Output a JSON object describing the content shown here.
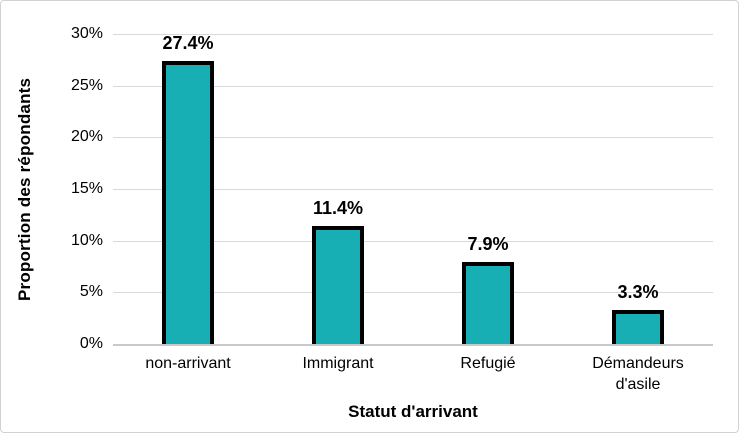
{
  "frame": {
    "border_color": "#d2d2d2",
    "background": "#ffffff"
  },
  "chart_data": {
    "type": "bar",
    "title": "",
    "xlabel": "Statut d'arrivant",
    "ylabel": "Proportion des répondants",
    "categories": [
      "non-arrivant",
      "Immigrant",
      "Refugié",
      "Démandeurs d'asile"
    ],
    "values": [
      27.4,
      11.4,
      7.9,
      3.3
    ],
    "data_labels": [
      "27.4%",
      "11.4%",
      "7.9%",
      "3.3%"
    ],
    "ylim": [
      0,
      30
    ],
    "ytick_step": 5,
    "ytick_labels": [
      "30%",
      "25%",
      "20%",
      "15%",
      "10%",
      "5%",
      "0%"
    ],
    "grid": true,
    "legend": false,
    "colors": {
      "bar_fill": "#17aeb4",
      "bar_border": "#000000",
      "gridline": "#d9d9d9",
      "axis_line": "#c9c9c9",
      "text": "#000000"
    }
  }
}
